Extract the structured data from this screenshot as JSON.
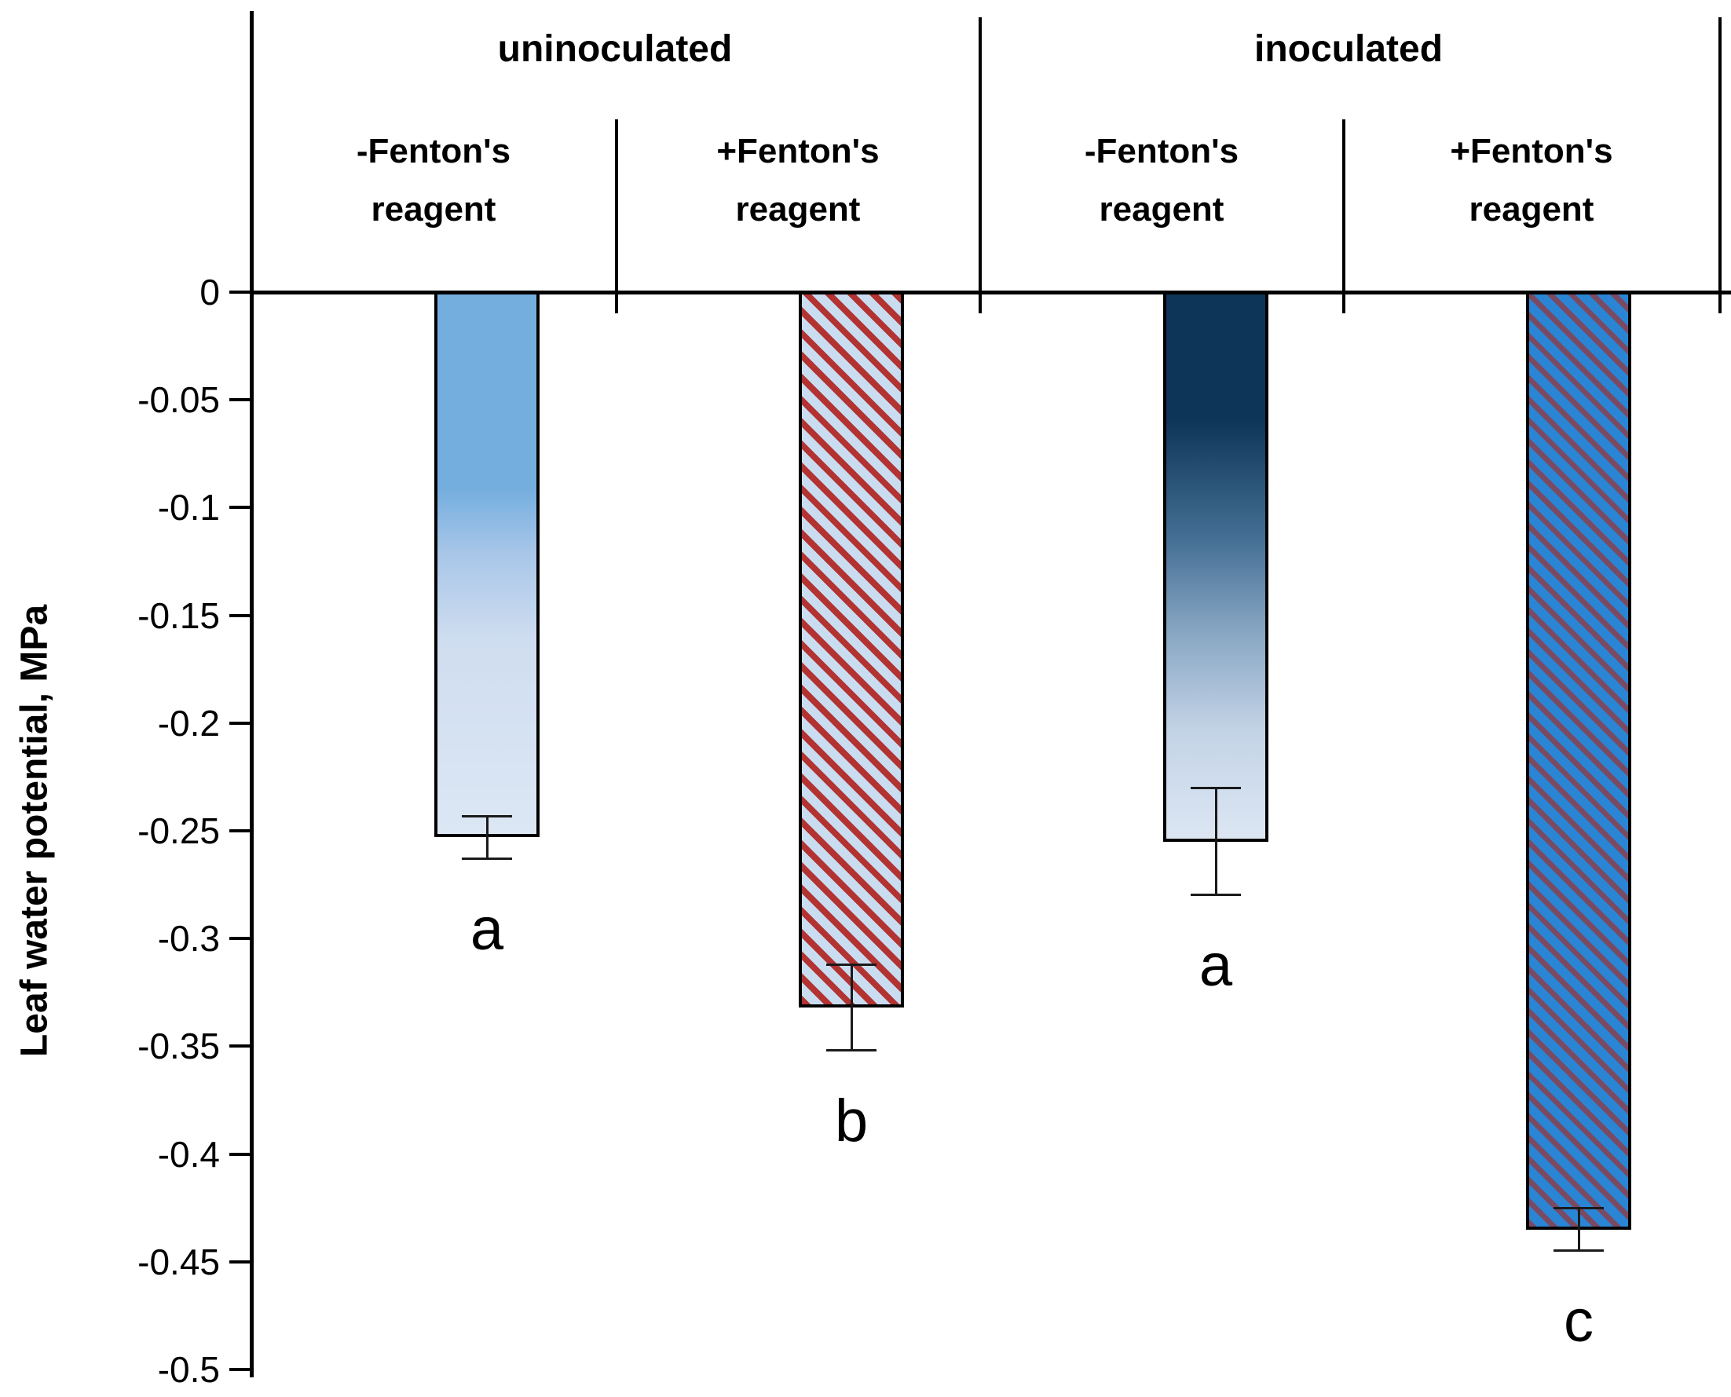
{
  "chart_data": {
    "type": "bar",
    "title": "",
    "ylabel": "Leaf water potential, MPa",
    "ylim": [
      -0.5,
      0
    ],
    "grid": false,
    "legend": "none",
    "yticks": [
      {
        "label": "0",
        "value": 0
      },
      {
        "label": "-0.05",
        "value": -0.05
      },
      {
        "label": "-0.1",
        "value": -0.1
      },
      {
        "label": "-0.15",
        "value": -0.15
      },
      {
        "label": "-0.2",
        "value": -0.2
      },
      {
        "label": "-0.25",
        "value": -0.25
      },
      {
        "label": "-0.3",
        "value": -0.3
      },
      {
        "label": "-0.35",
        "value": -0.35
      },
      {
        "label": "-0.4",
        "value": -0.4
      },
      {
        "label": "-0.45",
        "value": -0.45
      },
      {
        "label": "-0.5",
        "value": -0.5
      }
    ],
    "groups": [
      {
        "label": "uninoculated",
        "columns": [
          {
            "treatment_line1": "-Fenton's",
            "treatment_line2": "reagent",
            "value": -0.253,
            "error": 0.01,
            "sig_letter": "a",
            "fill": {
              "type": "gradient",
              "stops": [
                "#74AEDF 0%",
                "#74AEDF 36%",
                "#A8C6E8 48%",
                "#CFDDF0 64%",
                "#DCE7F4 100%"
              ]
            }
          },
          {
            "treatment_line1": "+Fenton's",
            "treatment_line2": "reagent",
            "value": -0.332,
            "error": 0.02,
            "sig_letter": "b",
            "fill": {
              "type": "hatch",
              "bg": "#C9DCF0",
              "stripe": "#B23331",
              "stripe_width": 8,
              "period": 20
            }
          }
        ]
      },
      {
        "label": "inoculated",
        "columns": [
          {
            "treatment_line1": "-Fenton's",
            "treatment_line2": "reagent",
            "value": -0.255,
            "error": 0.025,
            "sig_letter": "a",
            "fill": {
              "type": "gradient",
              "stops": [
                "#0D3557 0%",
                "#0D3557 23%",
                "#456F95 45%",
                "#87A6C3 62%",
                "#C3D3E6 80%",
                "#DCE6F3 100%"
              ]
            }
          },
          {
            "treatment_line1": "+Fenton's",
            "treatment_line2": "reagent",
            "value": -0.435,
            "error": 0.01,
            "sig_letter": "c",
            "fill": {
              "type": "hatch",
              "bg": "#2A86D4",
              "stripe": "#7A4A63",
              "stripe_width": 7,
              "period": 19
            }
          }
        ]
      }
    ]
  }
}
